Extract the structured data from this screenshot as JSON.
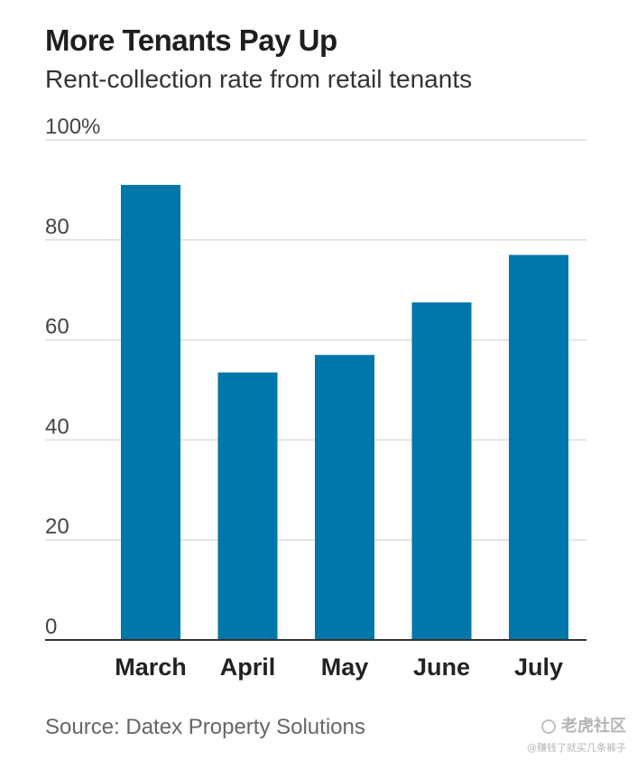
{
  "header": {
    "title": "More Tenants Pay Up",
    "subtitle": "Rent-collection rate from retail tenants"
  },
  "footer": {
    "source": "Source: Datex Property Solutions"
  },
  "watermark": {
    "logo_text": "老虎社区",
    "handle": "@赚钱了就买几条裤子"
  },
  "colors": {
    "bar": "#0077aa",
    "grid": "#dddddd",
    "axis": "#333333"
  },
  "chart_data": {
    "type": "bar",
    "title": "More Tenants Pay Up",
    "subtitle": "Rent-collection rate from retail tenants",
    "categories": [
      "March",
      "April",
      "May",
      "June",
      "July"
    ],
    "values": [
      91,
      53.5,
      57,
      67.5,
      77
    ],
    "xlabel": "",
    "ylabel": "",
    "ylim": [
      0,
      100
    ],
    "y_ticks": [
      0,
      20,
      40,
      60,
      80,
      100
    ],
    "y_tick_labels": [
      "0",
      "20",
      "40",
      "60",
      "80",
      "100%"
    ],
    "grid": true,
    "legend": "none"
  }
}
